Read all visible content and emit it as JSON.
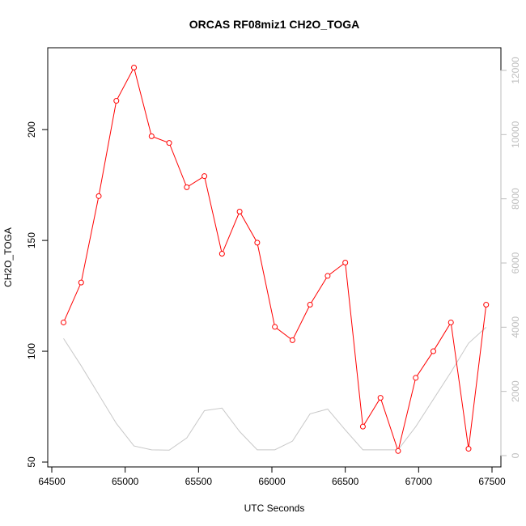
{
  "chart_data": {
    "type": "line",
    "title": "ORCAS RF08miz1 CH2O_TOGA",
    "xlabel": "UTC Seconds",
    "ylabel": "CH2O_TOGA",
    "xlim": [
      64500,
      67500
    ],
    "ylim": [
      50,
      230
    ],
    "y2lim": [
      0,
      12000
    ],
    "x_ticks": [
      64500,
      65000,
      65500,
      66000,
      66500,
      67000,
      67500
    ],
    "y_ticks": [
      50,
      100,
      150,
      200
    ],
    "y2_ticks": [
      0,
      2000,
      4000,
      6000,
      8000,
      10000,
      12000
    ],
    "grid": false,
    "legend": "none",
    "colors": {
      "primary": "#ff0000",
      "secondary": "#c8c8c8",
      "axis": "#000000",
      "axis2": "#bebebe"
    },
    "series": [
      {
        "axis": "left",
        "style": "line-with-open-circles",
        "x": [
          64580,
          64700,
          64820,
          64940,
          65060,
          65180,
          65300,
          65420,
          65540,
          65660,
          65780,
          65900,
          66020,
          66140,
          66260,
          66380,
          66500,
          66620,
          66740,
          66860,
          66980,
          67100,
          67220,
          67340,
          67460
        ],
        "y": [
          113,
          131,
          170,
          213,
          228,
          197,
          194,
          174,
          179,
          144,
          163,
          149,
          111,
          105,
          121,
          134,
          140,
          66,
          79,
          55,
          88,
          100,
          113,
          56,
          121
        ]
      },
      {
        "axis": "right",
        "style": "line",
        "x": [
          64580,
          64700,
          64820,
          64940,
          65060,
          65180,
          65300,
          65420,
          65540,
          65660,
          65780,
          65900,
          66020,
          66140,
          66260,
          66380,
          66500,
          66620,
          66740,
          66860,
          66980,
          67100,
          67220,
          67340,
          67460
        ],
        "y": [
          3650,
          2800,
          1900,
          1000,
          300,
          180,
          170,
          550,
          1400,
          1480,
          750,
          180,
          180,
          450,
          1300,
          1450,
          800,
          180,
          180,
          180,
          900,
          1750,
          2600,
          3500,
          4000
        ]
      }
    ]
  }
}
